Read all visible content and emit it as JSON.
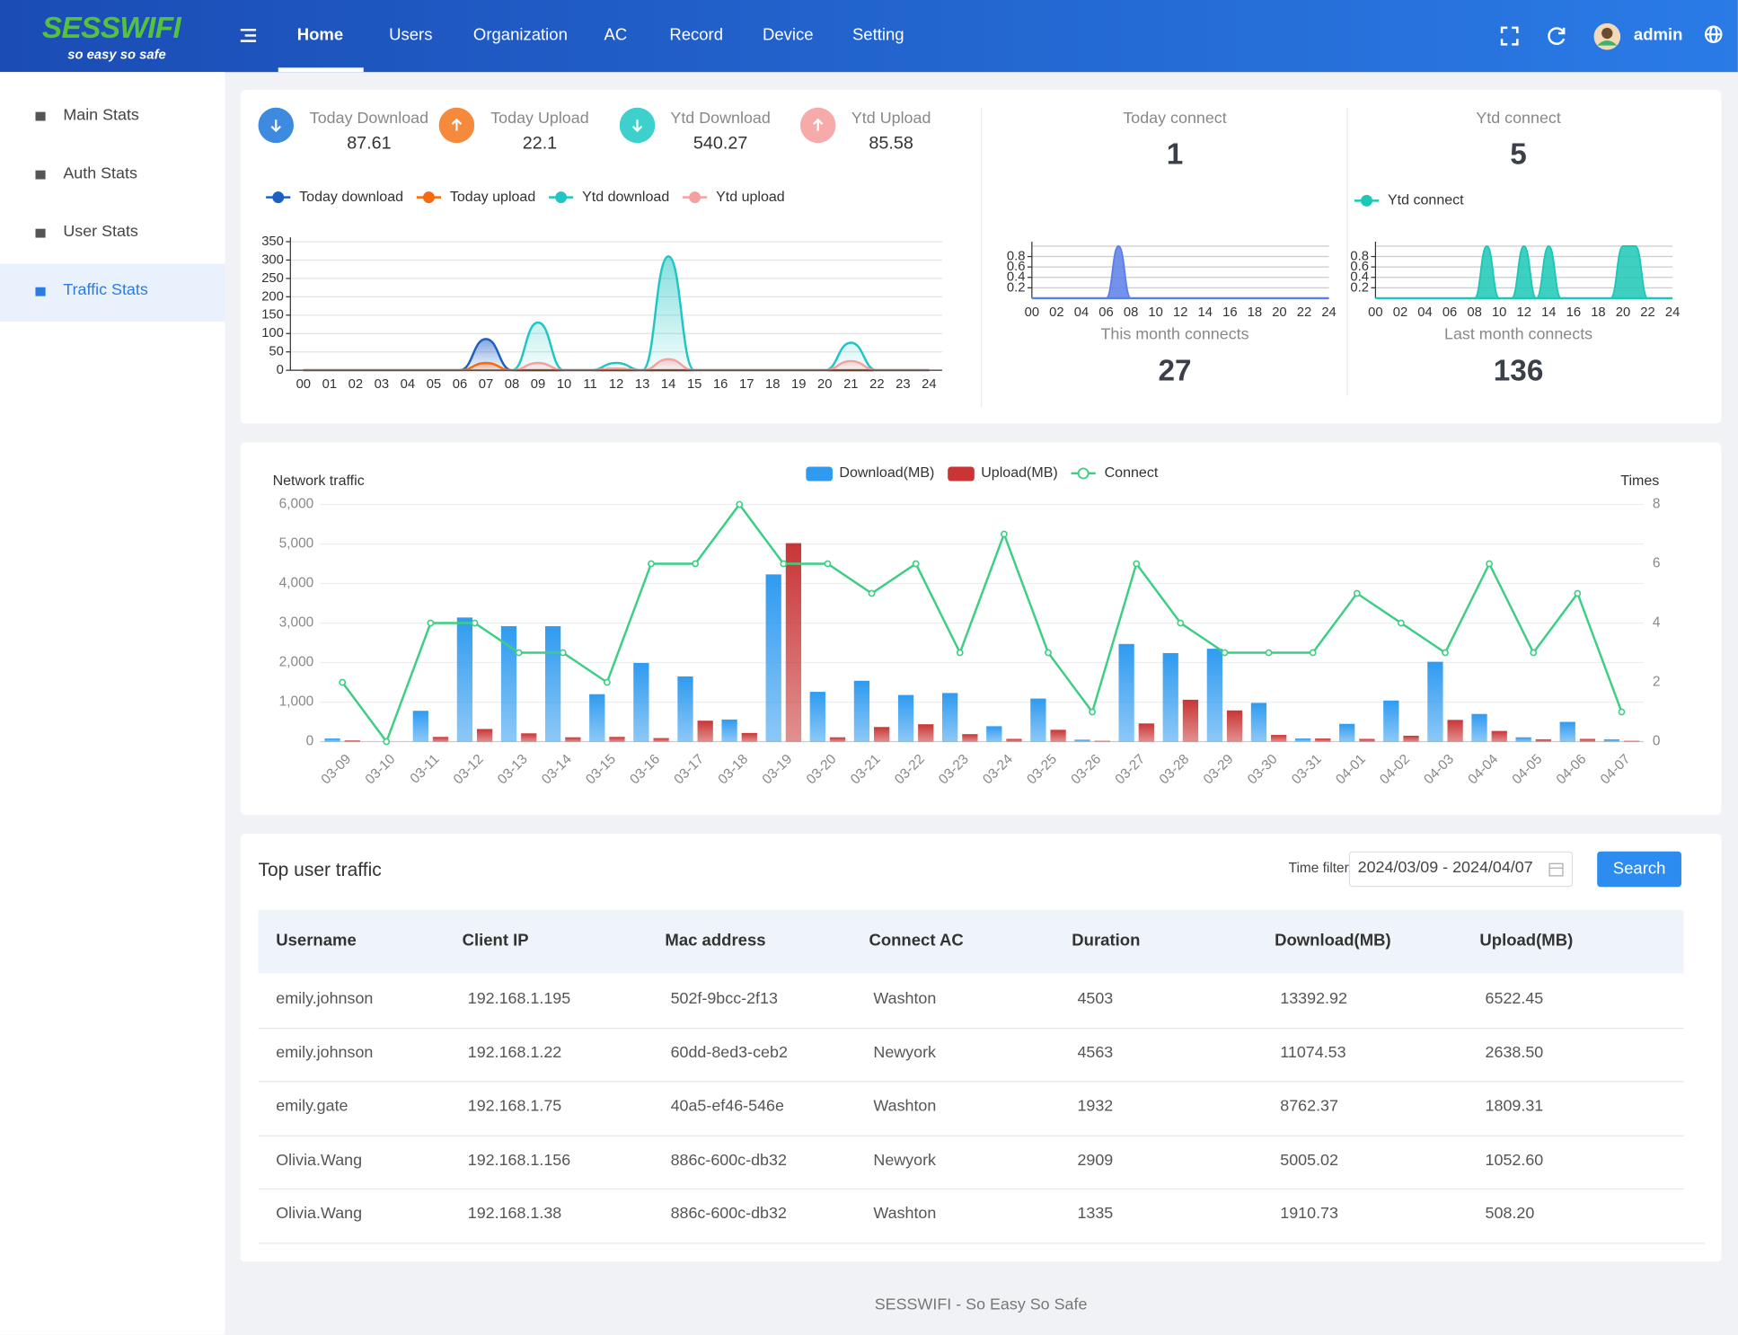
{
  "header": {
    "logo": "SESSWIFI",
    "slogan": "so easy so safe",
    "nav": [
      "Home",
      "Users",
      "Organization",
      "AC",
      "Record",
      "Device",
      "Setting"
    ],
    "user": "admin"
  },
  "sidebar": [
    "Main Stats",
    "Auth Stats",
    "User Stats",
    "Traffic Stats"
  ],
  "traffic_stats": [
    {
      "label": "Today Download",
      "value": 87.61
    },
    {
      "label": "Today Upload",
      "value": 22.1
    },
    {
      "label": "Ytd Download",
      "value": 540.27
    },
    {
      "label": "Ytd Upload",
      "value": 85.58
    }
  ],
  "connect_stats": [
    {
      "label": "Today connect",
      "value": 1
    },
    {
      "label": "Ytd connect",
      "value": 5
    },
    {
      "label": "This month connects",
      "value": 27
    },
    {
      "label": "Last month connects",
      "value": 136
    }
  ],
  "chart_data": [
    {
      "type": "line",
      "smooth": true,
      "area": true,
      "grid": true,
      "legend": "top-left",
      "categories": [
        "00",
        "01",
        "02",
        "03",
        "04",
        "05",
        "06",
        "07",
        "08",
        "09",
        "10",
        "11",
        "12",
        "13",
        "14",
        "15",
        "16",
        "17",
        "18",
        "19",
        "20",
        "21",
        "22",
        "23",
        "24"
      ],
      "ylim": [
        0,
        350
      ],
      "yticks": [
        0,
        50,
        100,
        150,
        200,
        250,
        300,
        350
      ],
      "series": [
        {
          "name": "Today download",
          "color": "#1d5fc4",
          "values": [
            0,
            0,
            0,
            0,
            0,
            0,
            0,
            85,
            0,
            0,
            0,
            0,
            0,
            0,
            0,
            0,
            0,
            0,
            0,
            0,
            0,
            0,
            0,
            0,
            0
          ]
        },
        {
          "name": "Today upload",
          "color": "#f56a0f",
          "values": [
            0,
            0,
            0,
            0,
            0,
            0,
            0,
            20,
            0,
            0,
            0,
            0,
            0,
            0,
            0,
            0,
            0,
            0,
            0,
            0,
            0,
            0,
            0,
            0,
            0
          ]
        },
        {
          "name": "Ytd download",
          "color": "#1fc6c4",
          "values": [
            0,
            0,
            0,
            0,
            0,
            0,
            0,
            0,
            0,
            130,
            0,
            0,
            20,
            0,
            310,
            0,
            0,
            0,
            0,
            0,
            0,
            75,
            0,
            0,
            0
          ]
        },
        {
          "name": "Ytd upload",
          "color": "#f4a0a0",
          "values": [
            0,
            0,
            0,
            0,
            0,
            0,
            0,
            0,
            0,
            20,
            0,
            0,
            5,
            0,
            30,
            0,
            0,
            0,
            0,
            0,
            0,
            25,
            0,
            0,
            0
          ]
        }
      ]
    },
    {
      "type": "line",
      "smooth": true,
      "area": true,
      "grid": true,
      "categories": [
        "00",
        null,
        "02",
        null,
        "04",
        null,
        "06",
        null,
        "08",
        null,
        "10",
        null,
        "12",
        null,
        "14",
        null,
        "16",
        null,
        "18",
        null,
        "20",
        null,
        "22",
        null,
        "24"
      ],
      "ylim": [
        0,
        1
      ],
      "yticks": [
        0.2,
        0.4,
        0.6,
        0.8
      ],
      "series": [
        {
          "color": "#5b7fe8",
          "values": [
            0,
            0,
            0,
            0,
            0,
            0,
            0,
            1,
            0,
            0,
            0,
            0,
            0,
            0,
            0,
            0,
            0,
            0,
            0,
            0,
            0,
            0,
            0,
            0,
            0
          ]
        }
      ]
    },
    {
      "type": "line",
      "smooth": true,
      "area": true,
      "grid": true,
      "legend": "top-left",
      "categories": [
        "00",
        null,
        "02",
        null,
        "04",
        null,
        "06",
        null,
        "08",
        null,
        "10",
        null,
        "12",
        null,
        "14",
        null,
        "16",
        null,
        "18",
        null,
        "20",
        null,
        "22",
        null,
        "24"
      ],
      "ylim": [
        0,
        1
      ],
      "yticks": [
        0.2,
        0.4,
        0.6,
        0.8
      ],
      "series": [
        {
          "name": "Ytd connect",
          "color": "#1cc7b6",
          "values": [
            0,
            0,
            0,
            0,
            0,
            0,
            0,
            0,
            0,
            1,
            0,
            0,
            1,
            0,
            1,
            0,
            0,
            0,
            0,
            0,
            1,
            1,
            0,
            0,
            0
          ]
        }
      ]
    },
    {
      "type": "bar",
      "grid": true,
      "legend": "top",
      "ylabel": "Network traffic",
      "y2label": "Times",
      "categories": [
        "03-09",
        "03-10",
        "03-11",
        "03-12",
        "03-13",
        "03-14",
        "03-15",
        "03-16",
        "03-17",
        "03-18",
        "03-19",
        "03-20",
        "03-21",
        "03-22",
        "03-23",
        "03-24",
        "03-25",
        "03-26",
        "03-27",
        "03-28",
        "03-29",
        "03-30",
        "03-31",
        "04-01",
        "04-02",
        "04-03",
        "04-04",
        "04-05",
        "04-06",
        "04-07"
      ],
      "ylim": [
        0,
        6000
      ],
      "yticks": [
        0,
        {
          "value": 1000,
          "label": "1,000"
        },
        {
          "value": 2000,
          "label": "2,000"
        },
        {
          "value": 3000,
          "label": "3,000"
        },
        {
          "value": 4000,
          "label": "4,000"
        },
        {
          "value": 5000,
          "label": "5,000"
        },
        {
          "value": 6000,
          "label": "6,000"
        }
      ],
      "y2lim": [
        0,
        8
      ],
      "y2ticks": [
        0,
        2,
        4,
        6,
        8
      ],
      "series": [
        {
          "name": "Download(MB)",
          "color": "#2f9bf0",
          "values": [
            80,
            0,
            780,
            3140,
            2920,
            2920,
            1200,
            1990,
            1650,
            560,
            4230,
            1260,
            1540,
            1180,
            1230,
            390,
            1090,
            50,
            2470,
            2240,
            2350,
            980,
            80,
            450,
            1040,
            2020,
            700,
            110,
            500,
            60
          ]
        },
        {
          "name": "Upload(MB)",
          "color": "#c93535",
          "values": [
            30,
            0,
            120,
            320,
            210,
            110,
            120,
            90,
            530,
            220,
            5020,
            110,
            370,
            440,
            190,
            70,
            300,
            20,
            460,
            1060,
            790,
            170,
            80,
            70,
            150,
            550,
            270,
            60,
            70,
            20
          ]
        },
        {
          "name": "Connect",
          "color": "#3ccf83",
          "type": "line",
          "axis": "y2",
          "values": [
            2,
            0,
            4,
            4,
            3,
            3,
            2,
            6,
            6,
            8,
            6,
            6,
            5,
            6,
            3,
            7,
            3,
            1,
            6,
            4,
            3,
            3,
            3,
            5,
            4,
            3,
            6,
            3,
            5,
            1
          ]
        }
      ]
    }
  ],
  "table": {
    "title": "Top user traffic",
    "filter_label": "Time filter",
    "date_range": "2024/03/09 - 2024/04/07",
    "button": "Search",
    "columns": [
      "Username",
      "Client IP",
      "Mac address",
      "Connect AC",
      "Duration",
      "Download(MB)",
      "Upload(MB)"
    ],
    "rows": [
      [
        "emily.johnson",
        "192.168.1.195",
        "502f-9bcc-2f13",
        "Washton",
        "4503",
        "13392.92",
        "6522.45"
      ],
      [
        "emily.johnson",
        "192.168.1.22",
        "60dd-8ed3-ceb2",
        "Newyork",
        "4563",
        "11074.53",
        "2638.50"
      ],
      [
        "emily.gate",
        "192.168.1.75",
        "40a5-ef46-546e",
        "Washton",
        "1932",
        "8762.37",
        "1809.31"
      ],
      [
        "Olivia.Wang",
        "192.168.1.156",
        "886c-600c-db32",
        "Newyork",
        "2909",
        "5005.02",
        "1052.60"
      ],
      [
        "Olivia.Wang",
        "192.168.1.38",
        "886c-600c-db32",
        "Washton",
        "1335",
        "1910.73",
        "508.20"
      ]
    ]
  },
  "footer": "SESSWIFI - So Easy So Safe"
}
